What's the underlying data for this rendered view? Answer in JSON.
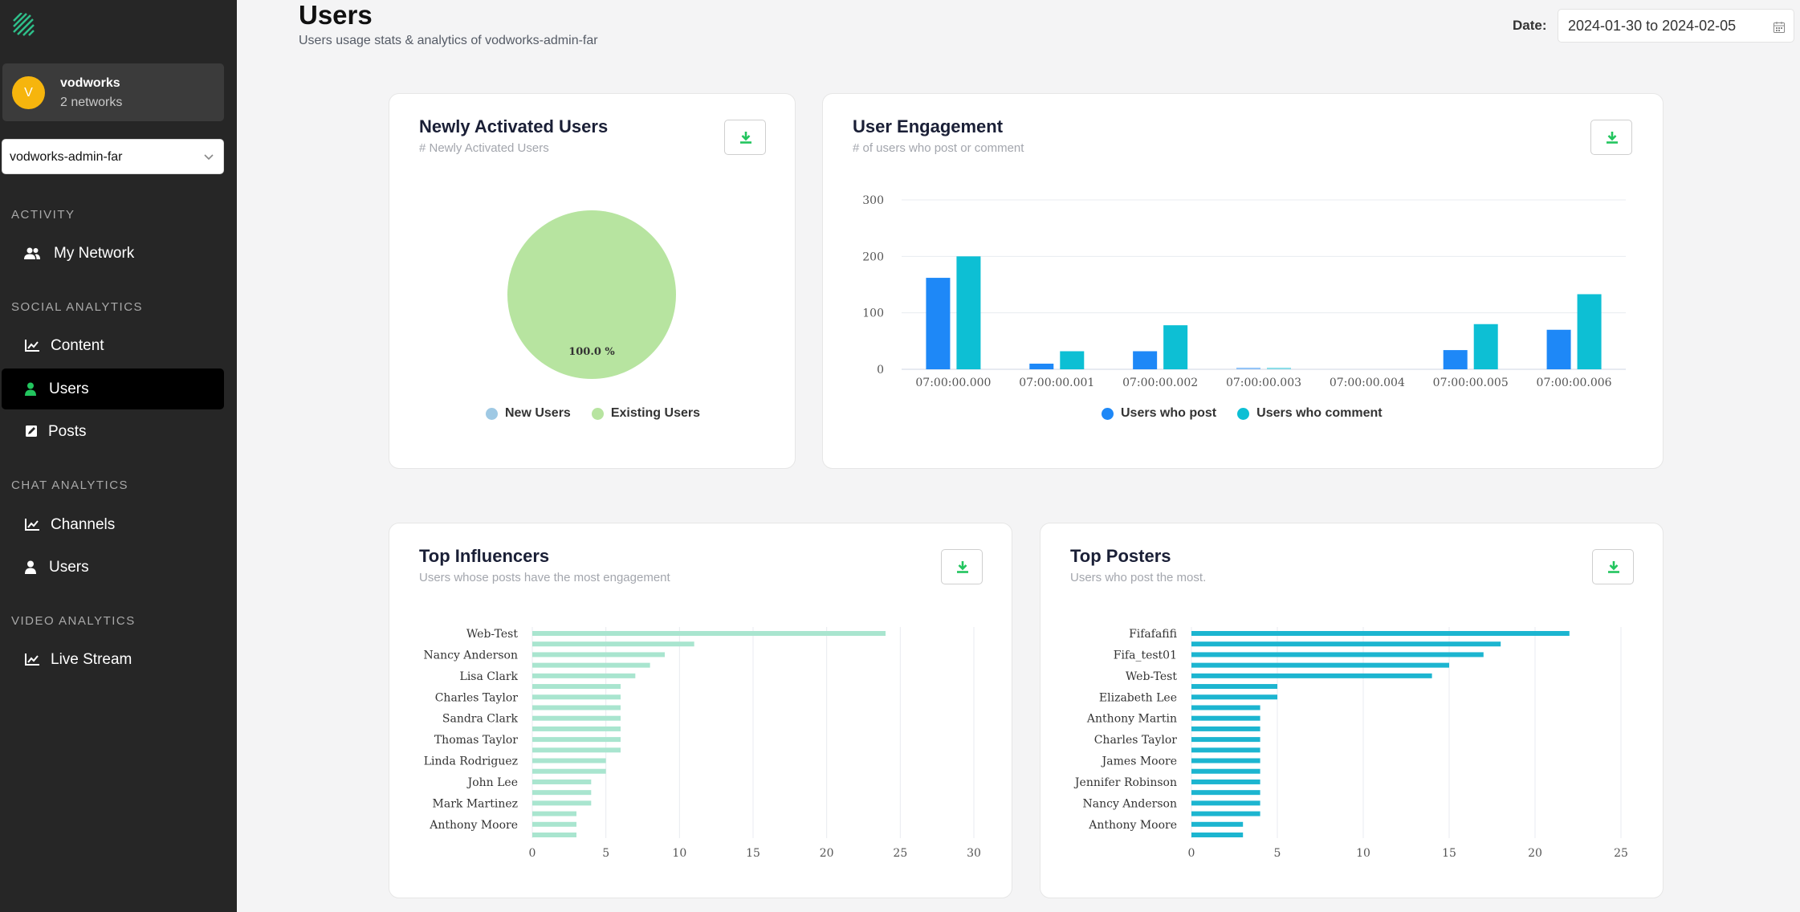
{
  "sidebar": {
    "account": {
      "initial": "V",
      "name": "vodworks",
      "subtitle": "2 networks"
    },
    "network_select": {
      "value": "vodworks-admin-far"
    },
    "sections": [
      {
        "title": "ACTIVITY",
        "items": [
          {
            "label": "My Network",
            "icon": "users-icon"
          }
        ]
      },
      {
        "title": "SOCIAL ANALYTICS",
        "items": [
          {
            "label": "Content",
            "icon": "chart-icon"
          },
          {
            "label": "Users",
            "icon": "user-icon",
            "active": true
          },
          {
            "label": "Posts",
            "icon": "edit-icon"
          }
        ]
      },
      {
        "title": "CHAT ANALYTICS",
        "items": [
          {
            "label": "Channels",
            "icon": "chart-icon"
          },
          {
            "label": "Users",
            "icon": "user-icon"
          }
        ]
      },
      {
        "title": "VIDEO ANALYTICS",
        "items": [
          {
            "label": "Live Stream",
            "icon": "chart-icon"
          }
        ]
      }
    ]
  },
  "header": {
    "title": "Users",
    "subtitle": "Users usage stats & analytics of vodworks-admin-far",
    "date_label": "Date:",
    "date_range": "2024-01-30 to 2024-02-05"
  },
  "cards": {
    "newly_activated": {
      "title": "Newly Activated Users",
      "subtitle": "# Newly Activated Users"
    },
    "engagement": {
      "title": "User Engagement",
      "subtitle": "# of users who post or comment"
    },
    "influencers": {
      "title": "Top Influencers",
      "subtitle": "Users whose posts have the most engagement"
    },
    "posters": {
      "title": "Top Posters",
      "subtitle": "Users who post the most."
    }
  },
  "colors": {
    "accent_green": "#22c55e",
    "pie_existing": "#b7e4a0",
    "pie_new": "#9fc9e4",
    "post_blue": "#1e88f7",
    "comment_teal": "#0dbfd4",
    "influencer_bar": "#a9e5cf",
    "poster_bar": "#1cb5d0"
  },
  "chart_data": [
    {
      "type": "pie",
      "labels": [
        "New Users",
        "Existing Users"
      ],
      "values": [
        0,
        100
      ],
      "data_labels": [
        "",
        "100.0 %"
      ]
    },
    {
      "type": "bar",
      "categories": [
        "07:00:00.000",
        "07:00:00.001",
        "07:00:00.002",
        "07:00:00.003",
        "07:00:00.004",
        "07:00:00.005",
        "07:00:00.006"
      ],
      "series": [
        {
          "name": "Users who post",
          "values": [
            162,
            10,
            32,
            3,
            0,
            34,
            70
          ]
        },
        {
          "name": "Users who comment",
          "values": [
            200,
            32,
            78,
            3,
            0,
            80,
            133
          ]
        }
      ],
      "ylim": [
        0,
        300
      ],
      "yticks": [
        0,
        100,
        200,
        300
      ],
      "legend": "bottom"
    },
    {
      "type": "bar",
      "orientation": "horizontal",
      "categories": [
        "Web-Test",
        "",
        "Nancy Anderson",
        "",
        "Lisa Clark",
        "",
        "Charles Taylor",
        "",
        "Sandra Clark",
        "",
        "Thomas Taylor",
        "",
        "Linda Rodriguez",
        "",
        "John Lee",
        "",
        "Mark Martinez",
        "",
        "Anthony Moore",
        ""
      ],
      "values": [
        24,
        11,
        9,
        8,
        7,
        6,
        6,
        6,
        6,
        6,
        6,
        6,
        5,
        5,
        4,
        4,
        4,
        3,
        3,
        3
      ],
      "xlim": [
        0,
        30
      ],
      "xticks": [
        0,
        5,
        10,
        15,
        20,
        25,
        30
      ]
    },
    {
      "type": "bar",
      "orientation": "horizontal",
      "categories": [
        "Fifafafifi",
        "",
        "Fifa_test01",
        "",
        "Web-Test",
        "",
        "Elizabeth Lee",
        "",
        "Anthony Martin",
        "",
        "Charles Taylor",
        "",
        "James Moore",
        "",
        "Jennifer Robinson",
        "",
        "Nancy Anderson",
        "",
        "Anthony Moore",
        ""
      ],
      "values": [
        22,
        18,
        17,
        15,
        14,
        5,
        5,
        4,
        4,
        4,
        4,
        4,
        4,
        4,
        4,
        4,
        4,
        4,
        3,
        3
      ],
      "xlim": [
        0,
        25
      ],
      "xticks": [
        0,
        5,
        10,
        15,
        20,
        25
      ]
    }
  ]
}
